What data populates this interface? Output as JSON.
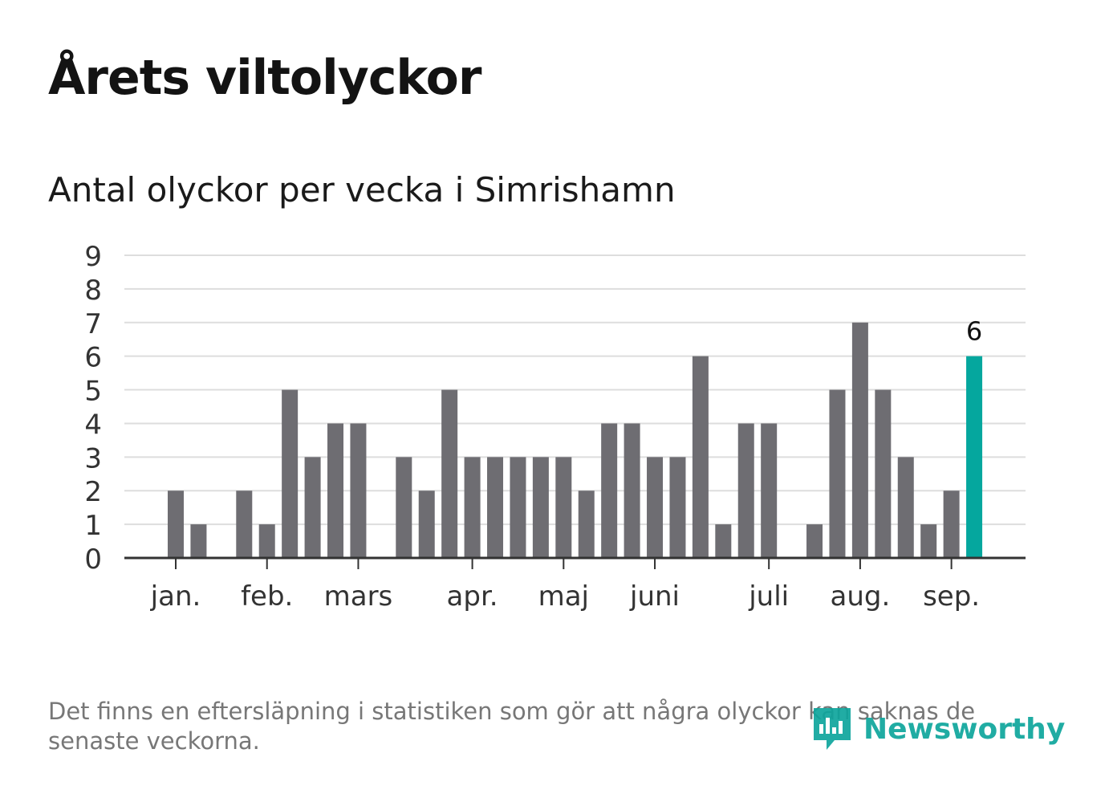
{
  "title": "Årets viltolyckor",
  "subtitle": "Antal olyckor per vecka i Simrishamn",
  "footnote": "Det finns en eftersläpning i statistiken som gör att några olyckor kan saknas de senaste veckorna.",
  "brand": {
    "name": "Newsworthy",
    "icon": "newsworthy-logo-icon",
    "color": "#0ea59c"
  },
  "colors": {
    "bar": "#6e6d72",
    "highlight": "#05a79e",
    "grid": "#dddddd",
    "axis": "#333333"
  },
  "chart_data": {
    "type": "bar",
    "title": "Årets viltolyckor",
    "subtitle": "Antal olyckor per vecka i Simrishamn",
    "xlabel": "",
    "ylabel": "",
    "ylim": [
      0,
      9
    ],
    "yticks": [
      "0",
      "1",
      "2",
      "3",
      "4",
      "5",
      "6",
      "7",
      "8",
      "9"
    ],
    "grid": true,
    "month_labels": [
      {
        "label": "jan.",
        "week": 2
      },
      {
        "label": "feb.",
        "week": 6
      },
      {
        "label": "mars",
        "week": 10
      },
      {
        "label": "apr.",
        "week": 15
      },
      {
        "label": "maj",
        "week": 19
      },
      {
        "label": "juni",
        "week": 23
      },
      {
        "label": "juli",
        "week": 28
      },
      {
        "label": "aug.",
        "week": 32
      },
      {
        "label": "sep.",
        "week": 36
      }
    ],
    "weeks": [
      1,
      2,
      3,
      4,
      5,
      6,
      7,
      8,
      9,
      10,
      11,
      12,
      13,
      14,
      15,
      16,
      17,
      18,
      19,
      20,
      21,
      22,
      23,
      24,
      25,
      26,
      27,
      28,
      29,
      30,
      31,
      32,
      33,
      34,
      35,
      36,
      37
    ],
    "values": [
      0,
      2,
      1,
      0,
      2,
      1,
      5,
      3,
      4,
      4,
      0,
      3,
      2,
      5,
      3,
      3,
      3,
      3,
      3,
      2,
      4,
      4,
      3,
      3,
      6,
      1,
      4,
      4,
      0,
      1,
      5,
      7,
      5,
      3,
      1,
      2,
      6
    ],
    "highlight_index": 36,
    "data_labels": [
      {
        "index": 36,
        "text": "6"
      }
    ]
  }
}
